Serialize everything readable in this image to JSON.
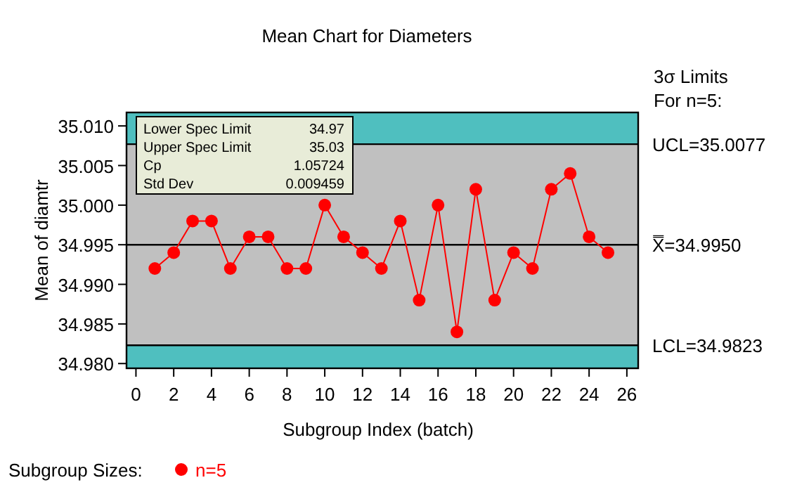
{
  "chart_data": {
    "type": "line",
    "title": "Mean Chart for Diameters",
    "xlabel": "Subgroup Index (batch)",
    "ylabel": "Mean of diamtr",
    "legend_title": "Subgroup Sizes:",
    "legend": "bottom left",
    "marker": "circle",
    "line_style": "solid",
    "x": [
      1,
      2,
      3,
      4,
      5,
      6,
      7,
      8,
      9,
      10,
      11,
      12,
      13,
      14,
      15,
      16,
      17,
      18,
      19,
      20,
      21,
      22,
      23,
      24,
      25
    ],
    "series": [
      {
        "name": "n=5",
        "color": "#ff0000",
        "values": [
          34.992,
          34.994,
          34.998,
          34.998,
          34.992,
          34.996,
          34.996,
          34.992,
          34.992,
          35.0,
          34.996,
          34.994,
          34.992,
          34.998,
          34.988,
          35.0,
          34.984,
          35.002,
          34.988,
          34.994,
          34.992,
          35.002,
          35.004,
          34.996,
          34.994
        ]
      }
    ],
    "xlim": [
      -0.5,
      26.6
    ],
    "xticks": [
      0,
      2,
      4,
      6,
      8,
      10,
      12,
      14,
      16,
      18,
      20,
      22,
      24,
      26
    ],
    "ylim": [
      34.9794,
      35.0117
    ],
    "yticks": [
      "35.010",
      "35.005",
      "35.000",
      "34.995",
      "34.990",
      "34.985",
      "34.980"
    ],
    "ref_lines": [
      {
        "axis": "y",
        "value": 35.0077,
        "label": "UCL=35.0077",
        "color": "#000000"
      },
      {
        "axis": "y",
        "value": 34.995,
        "label": "X̿=34.9950",
        "color": "#000000"
      },
      {
        "axis": "y",
        "value": 34.9823,
        "label": "LCL=34.9823",
        "color": "#000000"
      }
    ],
    "bands": [
      {
        "axis": "y",
        "from": 35.0077,
        "to": 35.0117,
        "color": "#4fbfbf"
      },
      {
        "axis": "y",
        "from": 34.9794,
        "to": 34.9823,
        "color": "#4fbfbf"
      }
    ],
    "annotations": [
      "Lower Spec Limit",
      "34.97",
      "Upper Spec Limit",
      "35.03",
      "Cp",
      "1.05724",
      "Std Dev",
      "0.009459",
      "3σ Limits",
      "For n=5:"
    ],
    "grid": false
  }
}
